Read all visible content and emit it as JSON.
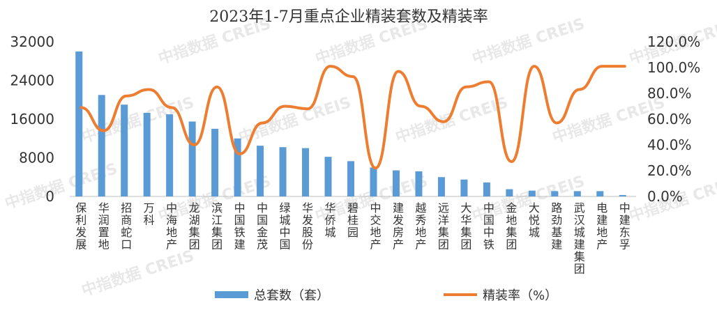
{
  "watermark": "中指数据 CREIS",
  "chart_data": {
    "type": "bar",
    "title": "2023年1-7月重点企业精装套数及精装率",
    "categories": [
      "保利发展",
      "华润置地",
      "招商蛇口",
      "万科",
      "中海地产",
      "龙湖集团",
      "滨江集团",
      "中国铁建",
      "中国金茂",
      "绿城中国",
      "华发股份",
      "华侨城",
      "碧桂园",
      "中交地产",
      "建发房产",
      "越秀地产",
      "远洋集团",
      "大华集团",
      "中国中铁",
      "金地集团",
      "大悦城",
      "路劲基建",
      "武汉城建集团",
      "电建地产",
      "中建东孚"
    ],
    "series": [
      {
        "name": "总套数（套）",
        "type": "bar",
        "axis": "left",
        "color": "#5B9BD5",
        "values": [
          30000,
          21000,
          19000,
          17300,
          17000,
          15500,
          14000,
          12000,
          10500,
          10200,
          10000,
          8200,
          7300,
          6000,
          5400,
          5200,
          4000,
          3500,
          2900,
          1500,
          1200,
          1100,
          1100,
          1100,
          300
        ]
      },
      {
        "name": "精装率（%）",
        "type": "line",
        "axis": "right",
        "color": "#ED7D31",
        "values": [
          69,
          51,
          78,
          83,
          69,
          40,
          85,
          33,
          57,
          70,
          68,
          101,
          93,
          22,
          97,
          70,
          58,
          85,
          89,
          27,
          101,
          57,
          83,
          101,
          101
        ]
      }
    ],
    "left_axis": {
      "ticks": [
        "0",
        "8000",
        "16000",
        "24000",
        "32000"
      ],
      "min": 0,
      "max": 32000
    },
    "right_axis": {
      "ticks": [
        "0.0%",
        "20.0%",
        "40.0%",
        "60.0%",
        "80.0%",
        "100.0%",
        "120.0%"
      ],
      "min": 0,
      "max": 120
    },
    "legend": {
      "position": "bottom"
    },
    "grid": false
  }
}
